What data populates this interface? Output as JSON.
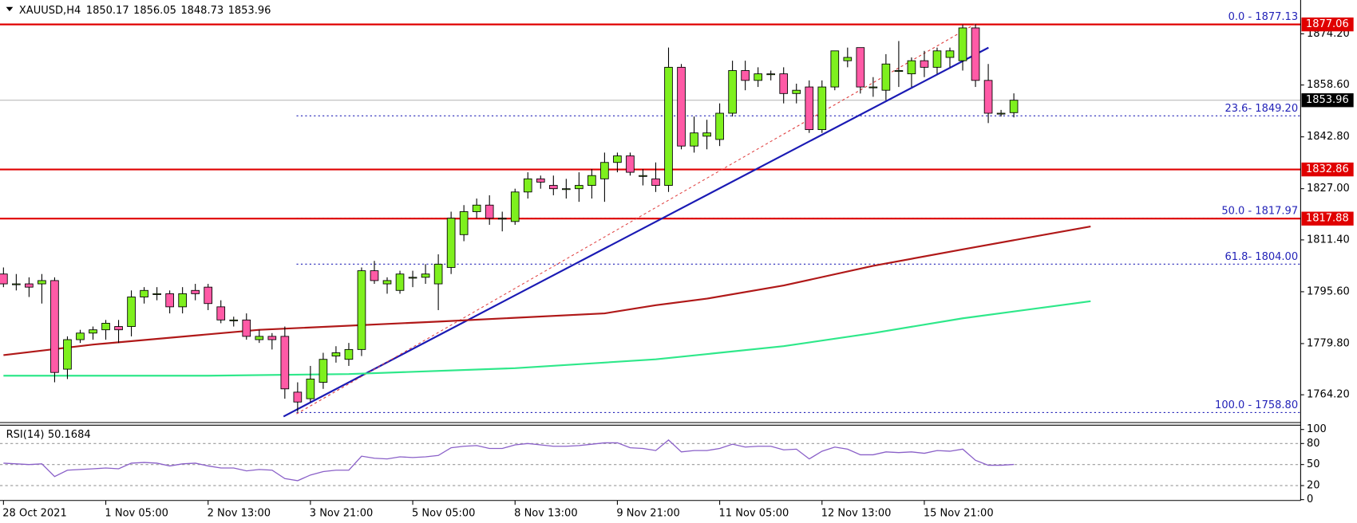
{
  "chart_data": {
    "type": "candlestick",
    "title": "XAUUSD,H4",
    "categories": [
      "28 Oct 2021",
      null,
      null,
      null,
      null,
      null,
      null,
      null,
      "1 Nov 05:00",
      null,
      null,
      null,
      null,
      null,
      null,
      null,
      "2 Nov 13:00",
      null,
      null,
      null,
      null,
      null,
      null,
      null,
      "3 Nov 21:00",
      null,
      null,
      null,
      null,
      null,
      null,
      null,
      "5 Nov 05:00",
      null,
      null,
      null,
      null,
      null,
      null,
      null,
      "8 Nov 13:00",
      null,
      null,
      null,
      null,
      null,
      null,
      null,
      "9 Nov 21:00",
      null,
      null,
      null,
      null,
      null,
      null,
      null,
      "11 Nov 05:00",
      null,
      null,
      null,
      null,
      null,
      null,
      null,
      "12 Nov 13:00",
      null,
      null,
      null,
      null,
      null,
      null,
      null,
      "15 Nov 21:00",
      null,
      null,
      null,
      null,
      null,
      null,
      null
    ],
    "open": [
      1801,
      1798,
      1798,
      1798,
      1799,
      1772,
      1781,
      1783,
      1784,
      1785,
      1785,
      1794,
      1795,
      1795,
      1791,
      1796,
      1797,
      1791,
      1787,
      1787,
      1781,
      1782,
      1782,
      1765,
      1763,
      1768,
      1776,
      1775,
      1778,
      1802,
      1798,
      1796,
      1800,
      1800,
      1798,
      1803,
      1813,
      1820,
      1822,
      1818,
      1817,
      1826,
      1830,
      1828,
      1827,
      1827,
      1828,
      1830,
      1835,
      1837,
      1831,
      1830,
      1828,
      1864,
      1840,
      1843,
      1842,
      1850,
      1863,
      1860,
      1862,
      1862,
      1856,
      1858,
      1845,
      1858,
      1866,
      1870,
      1858,
      1857,
      1863,
      1862,
      1866,
      1864,
      1867,
      1866,
      1876,
      1860,
      1850,
      1850.17
    ],
    "high": [
      1803,
      1801,
      1800,
      1801,
      1800,
      1782,
      1784,
      1785,
      1787,
      1787,
      1796,
      1797,
      1797,
      1796,
      1797,
      1798,
      1798,
      1793,
      1788,
      1789,
      1784,
      1783,
      1785,
      1768,
      1773,
      1777,
      1779,
      1780,
      1803,
      1805,
      1800,
      1802,
      1802,
      1804,
      1807,
      1820,
      1822,
      1824,
      1825,
      1820,
      1827,
      1832,
      1831,
      1831,
      1830,
      1832,
      1833,
      1838,
      1838,
      1838,
      1833,
      1835,
      1870,
      1865,
      1849,
      1848,
      1853,
      1866,
      1866,
      1864,
      1863,
      1864,
      1859,
      1860,
      1860,
      1869,
      1870,
      1870,
      1861,
      1868,
      1872,
      1867,
      1869,
      1870,
      1870,
      1877,
      1877.13,
      1865,
      1851,
      1856.05
    ],
    "low": [
      1797,
      1796,
      1794,
      1792,
      1768,
      1769,
      1780,
      1781,
      1781,
      1780,
      1782,
      1792,
      1793,
      1789,
      1789,
      1793,
      1790,
      1786,
      1785,
      1781,
      1780,
      1778,
      1763,
      1759,
      1762,
      1766,
      1774,
      1773,
      1776,
      1798,
      1795,
      1795,
      1797,
      1798,
      1790,
      1801,
      1811,
      1818,
      1816,
      1814,
      1816,
      1824,
      1827,
      1825,
      1824,
      1823,
      1824,
      1823,
      1832,
      1831,
      1828,
      1826,
      1826,
      1839,
      1838,
      1839,
      1840,
      1849,
      1857,
      1858,
      1860,
      1853,
      1853,
      1844,
      1844,
      1857,
      1864,
      1856,
      1855,
      1854,
      1858,
      1858,
      1861,
      1862,
      1864,
      1863,
      1858,
      1847,
      1849,
      1848.73
    ],
    "close": [
      1798,
      1798,
      1797,
      1799,
      1771,
      1781,
      1783,
      1784,
      1786,
      1784,
      1794,
      1796,
      1795,
      1791,
      1795,
      1795,
      1792,
      1787,
      1787,
      1782,
      1782,
      1781,
      1766,
      1762,
      1769,
      1775,
      1777,
      1778,
      1802,
      1799,
      1799,
      1801,
      1800,
      1801,
      1804,
      1818,
      1820,
      1822,
      1818,
      1818,
      1826,
      1830,
      1829,
      1827,
      1827,
      1828,
      1831,
      1835,
      1837,
      1832,
      1831,
      1828,
      1864,
      1840,
      1844,
      1844,
      1850,
      1863,
      1860,
      1862,
      1862,
      1856,
      1857,
      1845,
      1858,
      1869,
      1867,
      1858,
      1858,
      1865,
      1863,
      1866,
      1864,
      1869,
      1869,
      1876,
      1860,
      1850,
      1850,
      1853.96
    ],
    "up_color": "#7ef01e",
    "down_color": "#ff5aa6",
    "ylim": [
      1756,
      1884.5
    ],
    "yticks": [
      {
        "value": 1874.2,
        "label": "1874.20"
      },
      {
        "value": 1858.6,
        "label": "1858.60"
      },
      {
        "value": 1842.8,
        "label": "1842.80"
      },
      {
        "value": 1827,
        "label": "1827.00"
      },
      {
        "value": 1811.4,
        "label": "1811.40"
      },
      {
        "value": 1795.6,
        "label": "1795.60"
      },
      {
        "value": 1779.8,
        "label": "1779.80"
      },
      {
        "value": 1764.2,
        "label": "1764.20"
      }
    ],
    "moving_averages": [
      {
        "color": "#b01818",
        "x": [
          0,
          7,
          20,
          34,
          47,
          51,
          55,
          61,
          68,
          75,
          85
        ],
        "values": [
          1776.3,
          1779.5,
          1784,
          1786.5,
          1789,
          1791.5,
          1793.5,
          1797.5,
          1803.5,
          1808.5,
          1815.5
        ]
      },
      {
        "color": "#2ee88a",
        "x": [
          0,
          16,
          27,
          40,
          51,
          61,
          68,
          75,
          85
        ],
        "values": [
          1770,
          1770,
          1770.5,
          1772.3,
          1775,
          1779,
          1783,
          1787.5,
          1792.7
        ]
      }
    ],
    "levels": {
      "color": "#e00000",
      "values": [
        1877.06,
        1832.86,
        1817.88
      ]
    },
    "fib_levels": {
      "color": "#2323b8",
      "levels": [
        {
          "value": 1877.13,
          "label": "0.0 - 1877.13"
        },
        {
          "value": 1849.2,
          "label": "23.6- 1849.20"
        },
        {
          "value": 1817.97,
          "label": "50.0 - 1817.97"
        },
        {
          "value": 1804,
          "label": "61.8- 1804.00"
        },
        {
          "value": 1758.8,
          "label": "100.0 - 1758.80"
        }
      ]
    },
    "rsi": {
      "label": "RSI(14)",
      "color": "#8a60c8",
      "ylim": [
        0,
        100
      ],
      "yticks": [
        100,
        80,
        50,
        20,
        0
      ],
      "values": [
        52,
        51,
        50,
        51,
        33,
        42,
        43,
        44,
        45,
        44,
        52,
        53,
        52,
        48,
        51,
        52,
        48,
        45,
        45,
        41,
        43,
        42,
        30,
        27,
        35,
        40,
        42,
        42,
        62,
        59,
        58,
        61,
        60,
        61,
        63,
        74,
        76,
        77,
        73,
        73,
        78,
        80,
        78,
        76,
        76,
        77,
        79,
        81,
        81,
        74,
        73,
        70,
        85,
        68,
        70,
        70,
        73,
        79,
        75,
        76,
        76,
        71,
        72,
        58,
        69,
        75,
        72,
        64,
        64,
        68,
        67,
        68,
        66,
        70,
        69,
        72,
        56,
        49,
        49,
        50.1684
      ]
    }
  }
}
